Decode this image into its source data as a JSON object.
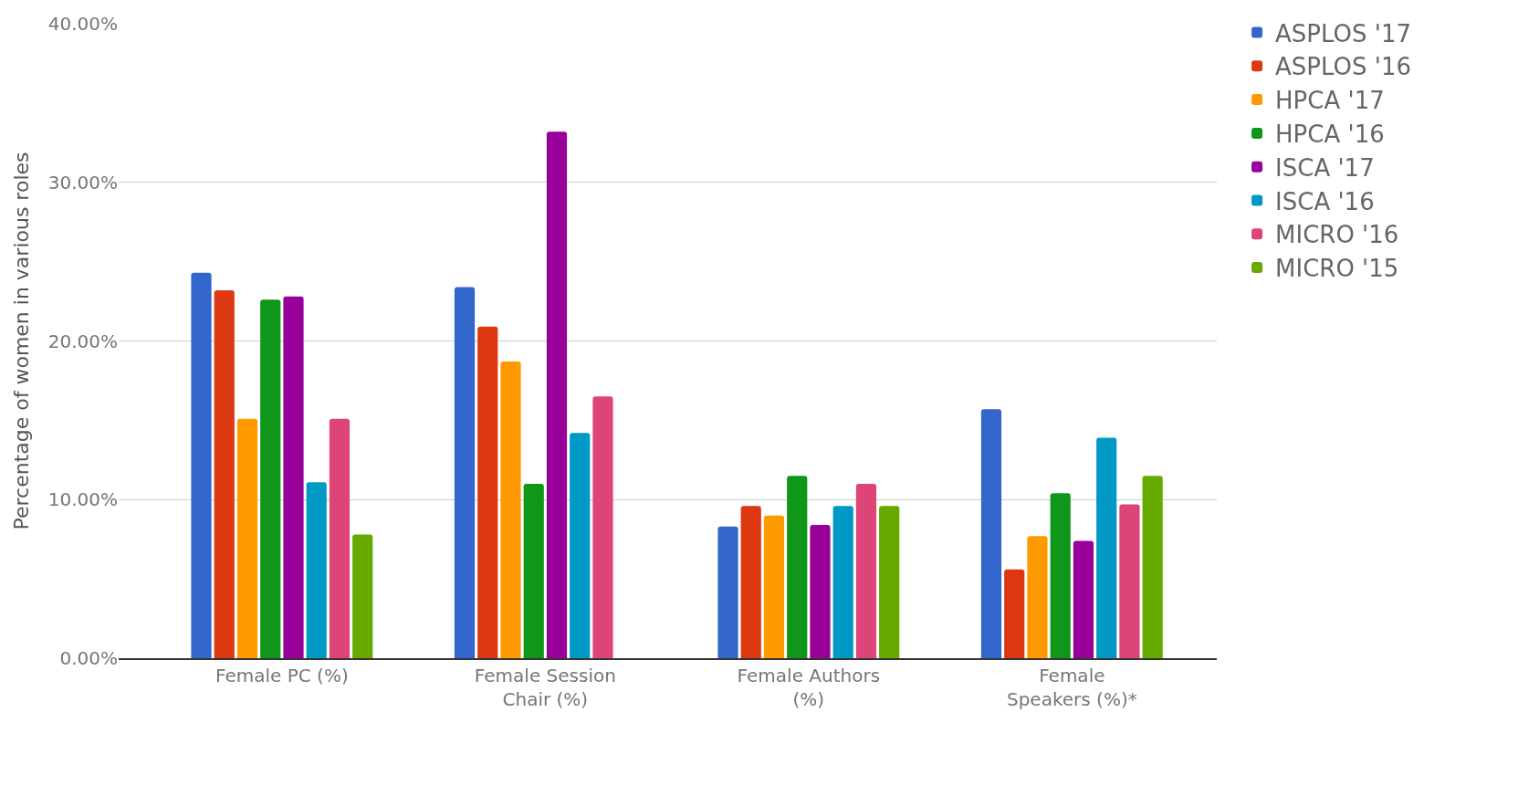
{
  "chart_data": {
    "type": "bar",
    "ylabel": "Percentage of women in various roles",
    "categories": [
      "Female PC (%)",
      "Female Session Chair (%)",
      "Female Authors (%)",
      "Female Speakers (%)*"
    ],
    "series": [
      {
        "name": "ASPLOS '17",
        "color": "#3366cc",
        "values": [
          24.3,
          23.4,
          8.3,
          15.7
        ]
      },
      {
        "name": "ASPLOS '16",
        "color": "#dc3912",
        "values": [
          23.2,
          20.9,
          9.6,
          5.6
        ]
      },
      {
        "name": "HPCA '17",
        "color": "#ff9900",
        "values": [
          15.1,
          18.7,
          9.0,
          7.7
        ]
      },
      {
        "name": "HPCA '16",
        "color": "#109618",
        "values": [
          22.6,
          11.0,
          11.5,
          10.4
        ]
      },
      {
        "name": "ISCA '17",
        "color": "#990099",
        "values": [
          22.8,
          33.2,
          8.4,
          7.4
        ]
      },
      {
        "name": "ISCA '16",
        "color": "#0099c6",
        "values": [
          11.1,
          14.2,
          9.6,
          13.9
        ]
      },
      {
        "name": "MICRO '16",
        "color": "#dd4477",
        "values": [
          15.1,
          16.5,
          11.0,
          9.7
        ]
      },
      {
        "name": "MICRO '15",
        "color": "#66aa00",
        "values": [
          7.8,
          null,
          9.6,
          11.5
        ]
      }
    ],
    "ylim": [
      0,
      40
    ],
    "yticks": [
      {
        "value": 0,
        "label": "0.00%"
      },
      {
        "value": 10,
        "label": "10.00%"
      },
      {
        "value": 20,
        "label": "20.00%"
      },
      {
        "value": 30,
        "label": "30.00%"
      },
      {
        "value": 40,
        "label": "40.00%"
      }
    ],
    "grid": "y",
    "legend": "top right"
  }
}
